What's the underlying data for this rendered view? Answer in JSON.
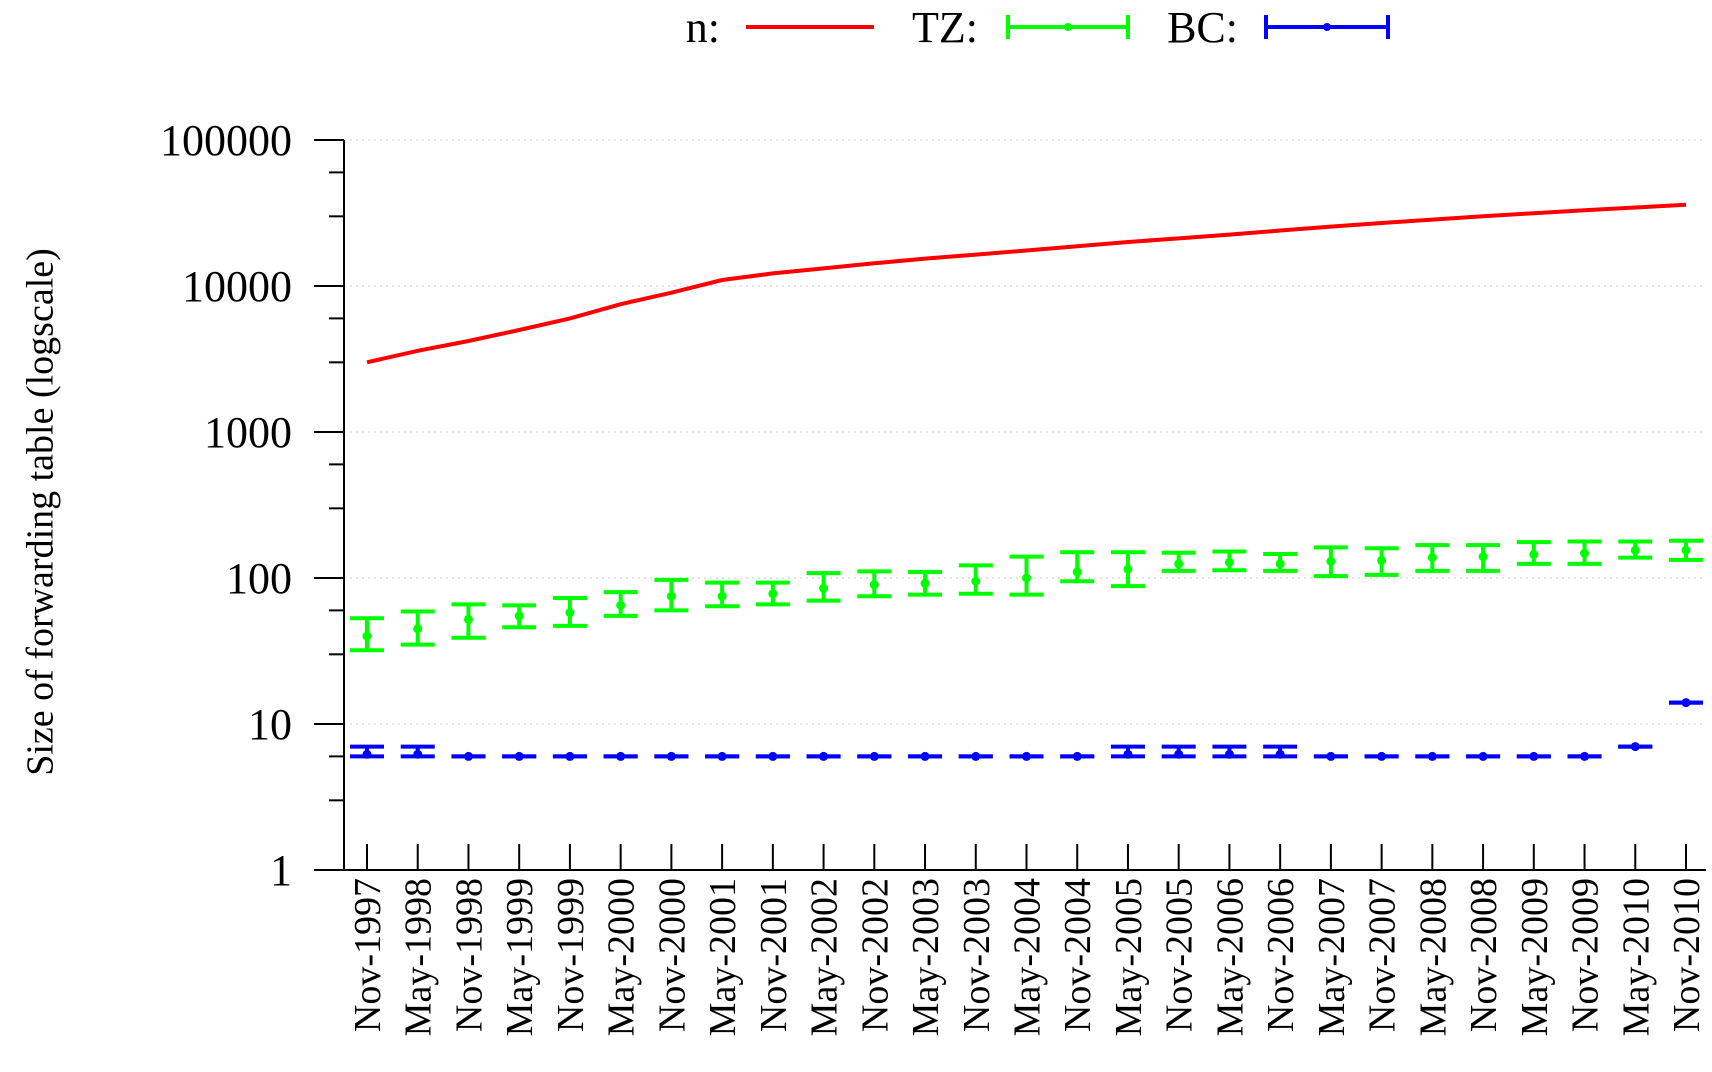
{
  "chart_data": {
    "type": "line",
    "title": "",
    "xlabel": "",
    "ylabel": "Size of forwarding table (logscale)",
    "y_scale": "log",
    "ylim": [
      1,
      100000
    ],
    "y_ticks": [
      1,
      10,
      100,
      1000,
      10000,
      100000
    ],
    "y_tick_labels": [
      "1",
      "10",
      "100",
      "1000",
      "10000",
      "100000"
    ],
    "grid": "horizontal dotted at major ticks",
    "legend_placement": "top-center",
    "categories": [
      "Nov-1997",
      "May-1998",
      "Nov-1998",
      "May-1999",
      "Nov-1999",
      "May-2000",
      "Nov-2000",
      "May-2001",
      "Nov-2001",
      "May-2002",
      "Nov-2002",
      "May-2003",
      "Nov-2003",
      "May-2004",
      "Nov-2004",
      "May-2005",
      "Nov-2005",
      "May-2006",
      "Nov-2006",
      "May-2007",
      "Nov-2007",
      "May-2008",
      "Nov-2008",
      "May-2009",
      "Nov-2009",
      "May-2010",
      "Nov-2010"
    ],
    "series": [
      {
        "name": "n:",
        "style": "line",
        "color": "#ff0000",
        "values": [
          3000,
          3600,
          4200,
          5000,
          6000,
          7500,
          9000,
          11000,
          12200,
          13200,
          14300,
          15400,
          16400,
          17500,
          18700,
          20000,
          21200,
          22500,
          24000,
          25500,
          27000,
          28500,
          30000,
          31500,
          33000,
          34500,
          36000
        ]
      },
      {
        "name": "TZ:",
        "style": "errorbars",
        "color": "#00ff00",
        "values": [
          40,
          45,
          52,
          55,
          58,
          65,
          75,
          75,
          78,
          85,
          90,
          92,
          95,
          100,
          110,
          115,
          125,
          128,
          125,
          130,
          132,
          138,
          140,
          145,
          148,
          155,
          155
        ],
        "low": [
          32,
          35,
          39,
          46,
          47,
          55,
          60,
          64,
          66,
          70,
          75,
          77,
          78,
          77,
          95,
          88,
          112,
          113,
          112,
          103,
          105,
          112,
          112,
          125,
          125,
          138,
          133
        ],
        "high": [
          53,
          59,
          66,
          65,
          73,
          80,
          97,
          93,
          93,
          108,
          111,
          110,
          122,
          140,
          150,
          150,
          149,
          152,
          146,
          162,
          160,
          168,
          168,
          176,
          178,
          178,
          180
        ]
      },
      {
        "name": "BC:",
        "style": "errorbars",
        "color": "#0000ff",
        "values": [
          6.2,
          6.2,
          6,
          6,
          6,
          6,
          6,
          6,
          6,
          6,
          6,
          6,
          6,
          6,
          6,
          6.2,
          6.2,
          6.2,
          6.2,
          6,
          6,
          6,
          6,
          6,
          6,
          7,
          14
        ],
        "low": [
          6,
          6,
          6,
          6,
          6,
          6,
          6,
          6,
          6,
          6,
          6,
          6,
          6,
          6,
          6,
          6,
          6,
          6,
          6,
          6,
          6,
          6,
          6,
          6,
          6,
          7,
          14
        ],
        "high": [
          7,
          7,
          6,
          6,
          6,
          6,
          6,
          6,
          6,
          6,
          6,
          6,
          6,
          6,
          6,
          7,
          7,
          7,
          7,
          6,
          6,
          6,
          6,
          6,
          6,
          7,
          14
        ]
      }
    ]
  }
}
